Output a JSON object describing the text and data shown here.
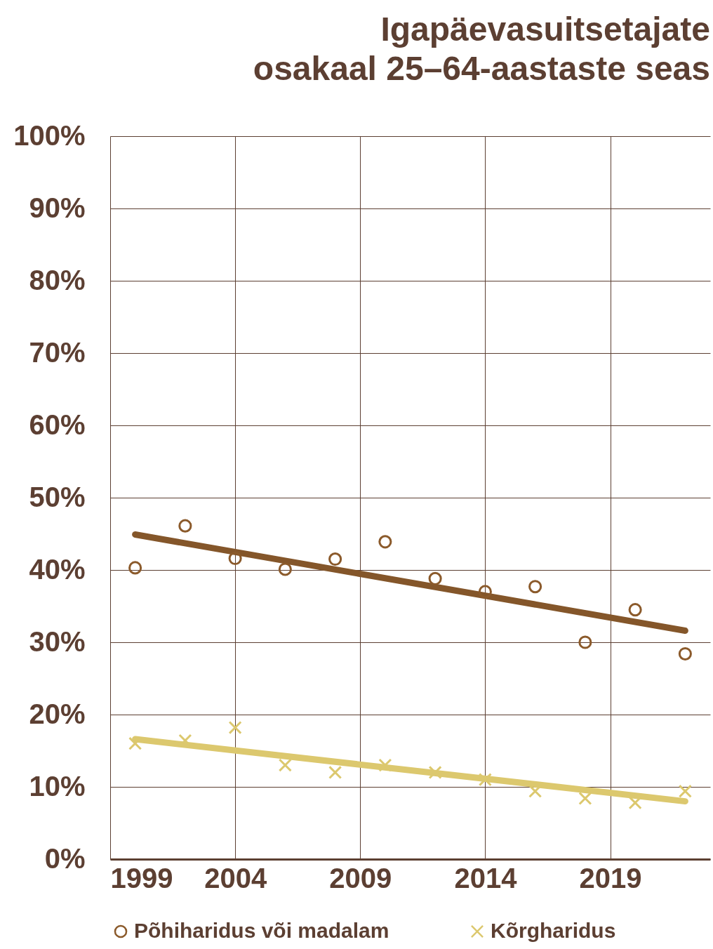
{
  "chart_data": {
    "type": "scatter",
    "title": "Igapäevasuitsetajate\nosakaal 25–64-aastaste seas",
    "series": [
      {
        "name": "Põhiharidus või madalam",
        "color": "#8b5a2b",
        "marker": "circle",
        "x": [
          2000,
          2002,
          2004,
          2006,
          2008,
          2010,
          2012,
          2014,
          2016,
          2018,
          2020,
          2022
        ],
        "values": [
          40.3,
          46.1,
          41.6,
          40.1,
          41.5,
          43.9,
          38.8,
          37.0,
          37.7,
          30.0,
          34.5,
          28.4
        ]
      },
      {
        "name": "Kõrgharidus",
        "color": "#dcc86e",
        "marker": "cross",
        "x": [
          2000,
          2002,
          2004,
          2006,
          2008,
          2010,
          2012,
          2014,
          2016,
          2018,
          2020,
          2022
        ],
        "values": [
          16.0,
          16.4,
          18.2,
          13.0,
          12.0,
          13.0,
          12.0,
          11.0,
          9.4,
          8.4,
          7.8,
          9.4
        ]
      },
      {
        "type": "line",
        "color": "#84562a",
        "marker": "none",
        "x": [
          2000,
          2022
        ],
        "values": [
          44.9,
          31.6
        ]
      },
      {
        "type": "line",
        "color": "#dcc86e",
        "marker": "none",
        "x": [
          2000,
          2022
        ],
        "values": [
          16.6,
          8.0
        ]
      }
    ],
    "xlim": [
      1999,
      2023
    ],
    "xticks": [
      1999,
      2004,
      2009,
      2014,
      2019
    ],
    "ylim": [
      0,
      100
    ],
    "yticks": [
      {
        "value": 0,
        "label": "0%"
      },
      {
        "value": 10,
        "label": "10%"
      },
      {
        "value": 20,
        "label": "20%"
      },
      {
        "value": 30,
        "label": "30%"
      },
      {
        "value": 40,
        "label": "40%"
      },
      {
        "value": 50,
        "label": "50%"
      },
      {
        "value": 60,
        "label": "60%"
      },
      {
        "value": 70,
        "label": "70%"
      },
      {
        "value": 80,
        "label": "80%"
      },
      {
        "value": 90,
        "label": "90%"
      },
      {
        "value": 100,
        "label": "100%"
      }
    ],
    "grid": true,
    "legend": "bottom"
  }
}
